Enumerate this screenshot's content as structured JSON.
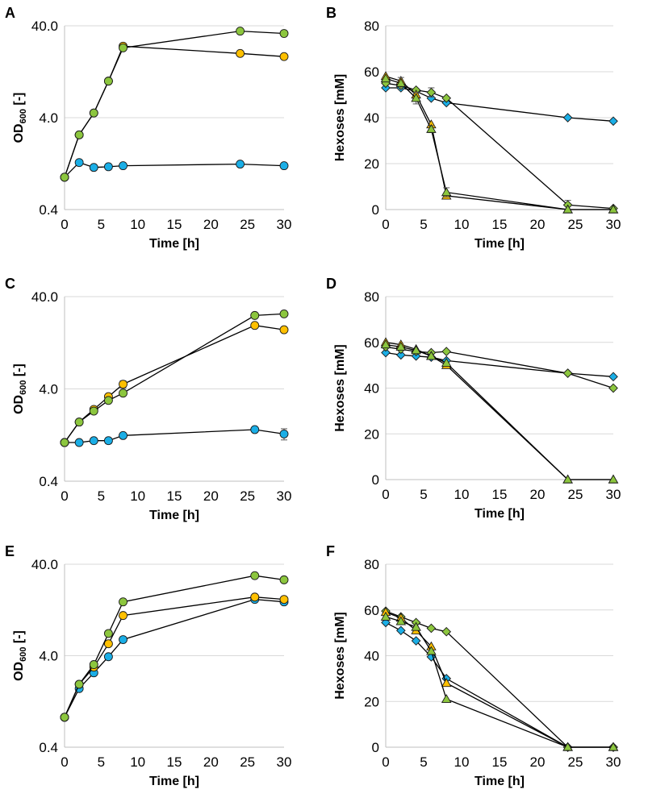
{
  "colors": {
    "blue": "#1aaee6",
    "orange": "#ffc000",
    "green": "#8cc63e"
  },
  "chart_data": [
    {
      "panel": "A",
      "type": "line",
      "yscale": "log",
      "xlabel": "Time [h]",
      "ylabel_main": "OD",
      "ylabel_sub": "600",
      "ylabel_suffix": " [-]",
      "xlim": [
        0,
        30
      ],
      "ylim": [
        0.4,
        40
      ],
      "xticks": [
        "0",
        "5",
        "10",
        "15",
        "20",
        "25",
        "30"
      ],
      "yticks": [
        "0.4",
        "4.0",
        "40.0"
      ],
      "series": [
        {
          "name": "blue",
          "marker": "circle",
          "color": "#1aaee6",
          "x": [
            0,
            2,
            4,
            6,
            8,
            24,
            30
          ],
          "y": [
            0.9,
            1.3,
            1.15,
            1.17,
            1.2,
            1.25,
            1.2
          ]
        },
        {
          "name": "orange",
          "marker": "circle",
          "color": "#ffc000",
          "x": [
            0,
            2,
            4,
            6,
            8,
            24,
            30
          ],
          "y": [
            0.9,
            2.6,
            4.5,
            10,
            24,
            20,
            18.5
          ],
          "err": [
            0,
            0,
            0,
            0,
            1.2,
            0,
            0
          ]
        },
        {
          "name": "green",
          "marker": "circle",
          "color": "#8cc63e",
          "x": [
            0,
            2,
            4,
            6,
            8,
            24,
            30
          ],
          "y": [
            0.9,
            2.6,
            4.5,
            10,
            23,
            35,
            33
          ],
          "err": [
            0,
            0,
            0,
            0,
            1.2,
            0,
            0
          ]
        }
      ]
    },
    {
      "panel": "B",
      "type": "line",
      "yscale": "linear",
      "xlabel": "Time [h]",
      "ylabel": "Hexoses [mM]",
      "xlim": [
        0,
        30
      ],
      "ylim": [
        0,
        80
      ],
      "xticks": [
        "0",
        "5",
        "10",
        "15",
        "20",
        "25",
        "30"
      ],
      "yticks": [
        "0",
        "20",
        "40",
        "60",
        "80"
      ],
      "series": [
        {
          "name": "blue",
          "marker": "diamond",
          "color": "#1aaee6",
          "x": [
            0,
            2,
            4,
            6,
            8,
            24,
            30
          ],
          "y": [
            53,
            53,
            51.5,
            48.5,
            46.5,
            40,
            38.5
          ]
        },
        {
          "name": "green-diamond",
          "marker": "diamond",
          "color": "#8cc63e",
          "x": [
            0,
            2,
            4,
            6,
            8,
            24,
            30
          ],
          "y": [
            55,
            54,
            52,
            51,
            48.5,
            2,
            0.5
          ],
          "err": [
            0,
            0,
            0,
            2,
            0,
            2,
            0
          ]
        },
        {
          "name": "orange",
          "marker": "triangle",
          "color": "#ffc000",
          "x": [
            0,
            2,
            4,
            6,
            8,
            24,
            30
          ],
          "y": [
            58,
            56,
            50,
            37,
            6,
            0,
            0
          ]
        },
        {
          "name": "green-triangle",
          "marker": "triangle",
          "color": "#8cc63e",
          "x": [
            0,
            2,
            4,
            6,
            8,
            24,
            30
          ],
          "y": [
            57,
            55,
            48.5,
            35,
            7.5,
            0,
            0
          ],
          "err": [
            0,
            2.5,
            2.5,
            1.5,
            2,
            0,
            0
          ]
        }
      ]
    },
    {
      "panel": "C",
      "type": "line",
      "yscale": "log",
      "xlabel": "Time [h]",
      "ylabel_main": "OD",
      "ylabel_sub": "600",
      "ylabel_suffix": " [-]",
      "xlim": [
        0,
        30
      ],
      "ylim": [
        0.4,
        40
      ],
      "xticks": [
        "0",
        "5",
        "10",
        "15",
        "20",
        "25",
        "30"
      ],
      "yticks": [
        "0.4",
        "4.0",
        "40.0"
      ],
      "series": [
        {
          "name": "blue",
          "marker": "circle",
          "color": "#1aaee6",
          "x": [
            0,
            2,
            4,
            6,
            8,
            26,
            30
          ],
          "y": [
            1.05,
            1.05,
            1.1,
            1.1,
            1.25,
            1.45,
            1.3
          ],
          "err": [
            0,
            0,
            0,
            0.08,
            0,
            0,
            0.18
          ]
        },
        {
          "name": "orange",
          "marker": "circle",
          "color": "#ffc000",
          "x": [
            0,
            2,
            4,
            6,
            8,
            26,
            30
          ],
          "y": [
            1.05,
            1.75,
            2.4,
            3.3,
            4.5,
            19.5,
            17.5
          ],
          "err": [
            0,
            0,
            0,
            0,
            0.4,
            0,
            0
          ]
        },
        {
          "name": "green",
          "marker": "circle",
          "color": "#8cc63e",
          "x": [
            0,
            2,
            4,
            6,
            8,
            26,
            30
          ],
          "y": [
            1.05,
            1.75,
            2.3,
            3.0,
            3.6,
            25,
            26
          ]
        }
      ]
    },
    {
      "panel": "D",
      "type": "line",
      "yscale": "linear",
      "xlabel": "Time [h]",
      "ylabel": "Hexoses [mM]",
      "xlim": [
        0,
        30
      ],
      "ylim": [
        0,
        80
      ],
      "xticks": [
        "0",
        "5",
        "10",
        "15",
        "20",
        "25",
        "30"
      ],
      "yticks": [
        "0",
        "20",
        "40",
        "60",
        "80"
      ],
      "series": [
        {
          "name": "blue",
          "marker": "diamond",
          "color": "#1aaee6",
          "x": [
            0,
            2,
            4,
            6,
            8,
            24,
            30
          ],
          "y": [
            55.5,
            54.5,
            54,
            53.5,
            52,
            46.5,
            45
          ]
        },
        {
          "name": "green-diamond",
          "marker": "diamond",
          "color": "#8cc63e",
          "x": [
            0,
            2,
            4,
            6,
            8,
            24,
            30
          ],
          "y": [
            58,
            57,
            56,
            55.5,
            56,
            46.5,
            40
          ]
        },
        {
          "name": "orange",
          "marker": "triangle",
          "color": "#ffc000",
          "x": [
            0,
            2,
            4,
            6,
            8,
            24,
            30
          ],
          "y": [
            60,
            59,
            57,
            54,
            50,
            0,
            0
          ]
        },
        {
          "name": "green-triangle",
          "marker": "triangle",
          "color": "#8cc63e",
          "x": [
            0,
            2,
            4,
            6,
            8,
            24,
            30
          ],
          "y": [
            59,
            58,
            56.5,
            54,
            51,
            0,
            0
          ]
        }
      ]
    },
    {
      "panel": "E",
      "type": "line",
      "yscale": "log",
      "xlabel": "Time [h]",
      "ylabel_main": "OD",
      "ylabel_sub": "600",
      "ylabel_suffix": " [-]",
      "xlim": [
        0,
        30
      ],
      "ylim": [
        0.4,
        40
      ],
      "xticks": [
        "0",
        "5",
        "10",
        "15",
        "20",
        "25",
        "30"
      ],
      "yticks": [
        "0.4",
        "4.0",
        "40.0"
      ],
      "series": [
        {
          "name": "blue",
          "marker": "circle",
          "color": "#1aaee6",
          "x": [
            0,
            2,
            4,
            6,
            8,
            26,
            30
          ],
          "y": [
            0.85,
            1.75,
            2.6,
            3.9,
            6.0,
            16.5,
            15.5
          ]
        },
        {
          "name": "orange",
          "marker": "circle",
          "color": "#ffc000",
          "x": [
            0,
            2,
            4,
            6,
            8,
            26,
            30
          ],
          "y": [
            0.85,
            1.95,
            3.0,
            5.4,
            11,
            17.5,
            16.5
          ]
        },
        {
          "name": "green",
          "marker": "circle",
          "color": "#8cc63e",
          "x": [
            0,
            2,
            4,
            6,
            8,
            26,
            30
          ],
          "y": [
            0.85,
            1.95,
            3.2,
            7.0,
            15.5,
            30,
            27
          ]
        }
      ]
    },
    {
      "panel": "F",
      "type": "line",
      "yscale": "linear",
      "xlabel": "Time [h]",
      "ylabel": "Hexoses [mM]",
      "xlim": [
        0,
        30
      ],
      "ylim": [
        0,
        80
      ],
      "xticks": [
        "0",
        "5",
        "10",
        "15",
        "20",
        "25",
        "30"
      ],
      "yticks": [
        "0",
        "20",
        "40",
        "60",
        "80"
      ],
      "series": [
        {
          "name": "blue",
          "marker": "diamond",
          "color": "#1aaee6",
          "x": [
            0,
            2,
            4,
            6,
            8,
            24,
            30
          ],
          "y": [
            54.5,
            51,
            46.5,
            39.5,
            30,
            0,
            0
          ]
        },
        {
          "name": "green-diamond",
          "marker": "diamond",
          "color": "#8cc63e",
          "x": [
            0,
            2,
            4,
            6,
            8,
            24,
            30
          ],
          "y": [
            59.5,
            57,
            54.5,
            52,
            50.5,
            0,
            0
          ]
        },
        {
          "name": "orange",
          "marker": "triangle",
          "color": "#ffc000",
          "x": [
            0,
            2,
            4,
            6,
            8,
            24,
            30
          ],
          "y": [
            59,
            56.5,
            51,
            44,
            28,
            0,
            0
          ]
        },
        {
          "name": "green-triangle",
          "marker": "triangle",
          "color": "#8cc63e",
          "x": [
            0,
            2,
            4,
            6,
            8,
            24,
            30
          ],
          "y": [
            57,
            55,
            52.5,
            42,
            21,
            0,
            0
          ]
        }
      ]
    }
  ]
}
